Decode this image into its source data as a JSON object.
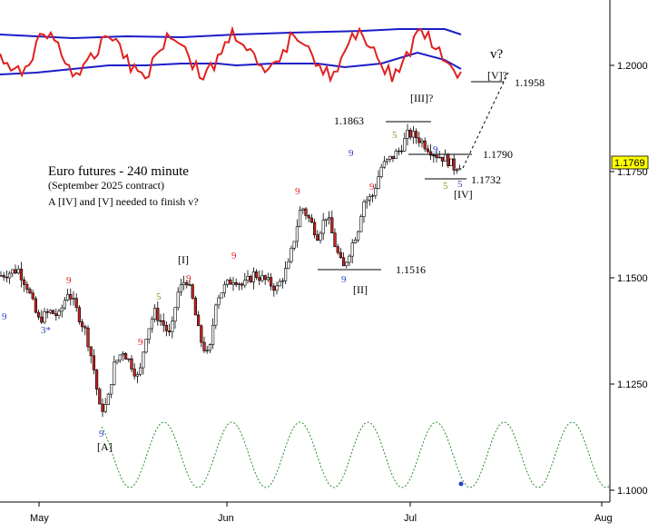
{
  "chart_data": {
    "type": "candlestick",
    "title": "Euro futures - 240 minute",
    "subtitle": "(September 2025 contract)",
    "note": "A [IV] and [V] needed to finish v?",
    "y_ticks": [
      "1.2000",
      "1.1750",
      "1.1500",
      "1.1250",
      "1.1000"
    ],
    "x_ticks": [
      "May",
      "Jun",
      "Jul",
      "Aug"
    ],
    "last_price": "1.1769",
    "colors": {
      "up": "#ffffff",
      "down": "#cc2222",
      "oscillator": "#e02020",
      "bands": "#1c1cc8",
      "cycle": "#2a8a2a",
      "count_red": "#e02020",
      "count_blue": "#2a3fc8",
      "count_olive": "#9a8a2a",
      "price_box": "#ffff00"
    },
    "price_levels": [
      {
        "label": "1.1958",
        "value": 1.1958
      },
      {
        "label": "1.1863",
        "value": 1.1863
      },
      {
        "label": "1.1790",
        "value": 1.179
      },
      {
        "label": "1.1732",
        "value": 1.1732
      },
      {
        "label": "1.1516",
        "value": 1.1516
      }
    ],
    "wave_labels": [
      "[A]",
      "[I]",
      "[II]",
      "[III]?",
      "[IV]",
      "[V]?",
      "v?"
    ],
    "counts": [
      "9",
      "9",
      "3*",
      "9",
      "5",
      "9",
      "9",
      "9",
      "9",
      "9",
      "9",
      "9",
      "5",
      "9",
      "5",
      "5"
    ]
  }
}
